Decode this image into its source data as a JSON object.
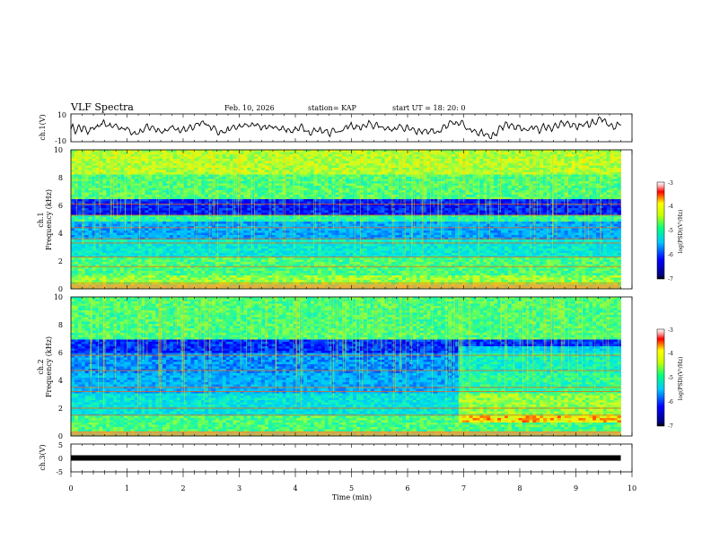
{
  "header": {
    "title": "VLF Spectra",
    "date": "Feb. 10, 2026",
    "station": "station= KAP",
    "start": "start  UT  =  18: 20: 0"
  },
  "chart_data": [
    {
      "type": "line",
      "name": "ch1-waveform",
      "ylabel": "ch.1(V)",
      "ylim": [
        -10,
        10
      ],
      "yticks": [
        "10",
        "-10"
      ],
      "xlim": [
        0,
        10
      ],
      "x_extent": 9.8
    },
    {
      "type": "heatmap",
      "name": "ch1-spectrogram",
      "ylabel": "ch.1\nFrequency (kHz)",
      "ylim": [
        0,
        10
      ],
      "yticks": [
        "0",
        "2",
        "4",
        "6",
        "8",
        "10"
      ],
      "xlim": [
        0,
        10
      ],
      "x_extent": 9.8,
      "colorbar": {
        "label": "log(PSD)(V²/Hz)",
        "range": [
          -7,
          -3
        ],
        "ticks": [
          "-3",
          "-4",
          "-5",
          "-6",
          "-7"
        ]
      }
    },
    {
      "type": "heatmap",
      "name": "ch2-spectrogram",
      "ylabel": "ch.2\nFrequency (kHz)",
      "ylim": [
        0,
        10
      ],
      "yticks": [
        "0",
        "2",
        "4",
        "6",
        "8",
        "10"
      ],
      "xlim": [
        0,
        10
      ],
      "x_extent": 9.8,
      "colorbar": {
        "label": "log(PSD)(V²/Hz)",
        "range": [
          -7,
          -3
        ],
        "ticks": [
          "-3",
          "-4",
          "-5",
          "-6",
          "-7"
        ]
      }
    },
    {
      "type": "line",
      "name": "ch3-trace",
      "ylabel": "ch.3(V)",
      "ylim": [
        -5,
        5
      ],
      "yticks": [
        "5",
        "0",
        "-5"
      ],
      "xlim": [
        0,
        10
      ],
      "x_extent": 9.8,
      "value": 0
    }
  ],
  "xaxis": {
    "label": "Time  (min)",
    "ticks": [
      "0",
      "1",
      "2",
      "3",
      "4",
      "5",
      "6",
      "7",
      "8",
      "9",
      "10"
    ]
  },
  "colors": {
    "low": "#00008b",
    "mid": "#00e0e0",
    "high": "#ffff00",
    "max": "#ff0000"
  }
}
